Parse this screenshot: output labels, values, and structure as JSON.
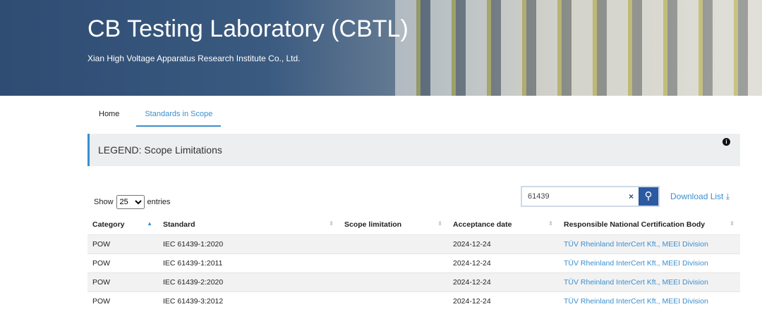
{
  "header": {
    "title": "CB Testing Laboratory (CBTL)",
    "subtitle": "Xian High Voltage Apparatus Research Institute Co., Ltd."
  },
  "nav": [
    {
      "label": "Home"
    },
    {
      "label": "Standards in Scope",
      "active": true
    }
  ],
  "legend": {
    "title": "LEGEND: Scope Limitations",
    "icon": "info-icon"
  },
  "controls": {
    "show_label": "Show",
    "entries_value": "25",
    "entries_label": "entries",
    "search_value": "61439",
    "clear": "×",
    "download_label": "Download List"
  },
  "table": {
    "columns": [
      "Category",
      "Standard",
      "Scope limitation",
      "Acceptance date",
      "Responsible National Certification Body"
    ],
    "rows": [
      [
        "POW",
        "IEC 61439-1:2020",
        "",
        "2024-12-24",
        "TÜV Rheinland InterCert Kft., MEEI Division"
      ],
      [
        "POW",
        "IEC 61439-1:2011",
        "",
        "2024-12-24",
        "TÜV Rheinland InterCert Kft., MEEI Division"
      ],
      [
        "POW",
        "IEC 61439-2:2020",
        "",
        "2024-12-24",
        "TÜV Rheinland InterCert Kft., MEEI Division"
      ],
      [
        "POW",
        "IEC 61439-3:2012",
        "",
        "2024-12-24",
        "TÜV Rheinland InterCert Kft., MEEI Division"
      ]
    ]
  },
  "colors": {
    "accent": "#3a8fd0",
    "search_button": "#2c5aa0"
  }
}
